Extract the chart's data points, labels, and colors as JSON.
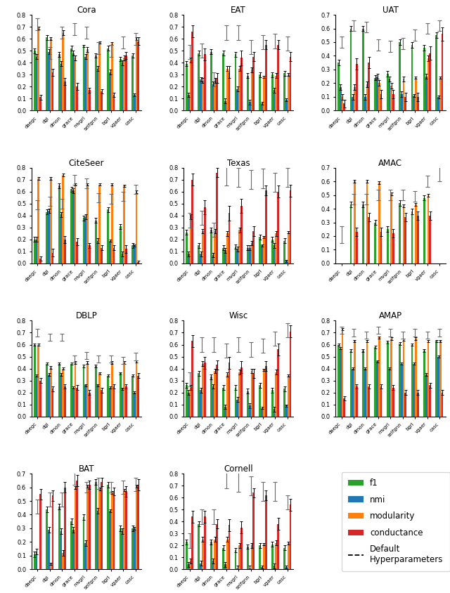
{
  "datasets": [
    "Cora",
    "EAT",
    "UAT",
    "CiteSeer",
    "Texas",
    "AMAC",
    "DBLP",
    "Wisc",
    "AMAP",
    "BAT",
    "Cornell"
  ],
  "methods": [
    "daegc",
    "dgi",
    "dmon",
    "grace",
    "mvgrl",
    "selfgnn",
    "bgrl",
    "vgaer",
    "casc"
  ],
  "measure_colors": [
    "#2ca02c",
    "#1f77b4",
    "#ff7f0e",
    "#d62728"
  ],
  "measure_names": [
    "f1",
    "nmi",
    "modularity",
    "conductance"
  ],
  "ylims": {
    "Cora": [
      0.0,
      0.8
    ],
    "EAT": [
      0.0,
      0.8
    ],
    "UAT": [
      0.0,
      0.7
    ],
    "CiteSeer": [
      0.0,
      0.8
    ],
    "Texas": [
      0.0,
      0.8
    ],
    "AMAC": [
      0.0,
      0.7
    ],
    "DBLP": [
      0.0,
      0.8
    ],
    "Wisc": [
      0.0,
      0.8
    ],
    "AMAP": [
      0.0,
      0.8
    ],
    "BAT": [
      0.0,
      0.7
    ],
    "Cornell": [
      0.0,
      0.8
    ]
  },
  "bar_data": {
    "Cora": {
      "f1": [
        0.5,
        0.61,
        0.47,
        0.52,
        0.54,
        0.46,
        0.52,
        0.43,
        0.46
      ],
      "nmi": [
        0.45,
        0.49,
        0.39,
        0.48,
        0.45,
        0.35,
        0.32,
        0.4,
        0.13
      ],
      "modularity": [
        0.69,
        0.6,
        0.65,
        0.44,
        0.51,
        0.57,
        0.56,
        0.44,
        0.6
      ],
      "conductance": [
        0.11,
        0.32,
        0.24,
        0.2,
        0.17,
        0.16,
        0.13,
        0.46,
        0.58
      ],
      "f1_err": [
        0.02,
        0.02,
        0.02,
        0.02,
        0.01,
        0.02,
        0.02,
        0.02,
        0.02
      ],
      "nmi_err": [
        0.02,
        0.02,
        0.02,
        0.02,
        0.02,
        0.02,
        0.02,
        0.02,
        0.01
      ],
      "modularity_err": [
        0.01,
        0.01,
        0.02,
        0.02,
        0.02,
        0.01,
        0.01,
        0.02,
        0.01
      ],
      "conductance_err": [
        0.02,
        0.03,
        0.03,
        0.03,
        0.02,
        0.02,
        0.02,
        0.03,
        0.03
      ],
      "default": [
        0.72,
        0.48,
        0.65,
        0.68,
        0.65,
        0.52,
        0.5,
        0.57,
        0.6
      ],
      "default_err": [
        0.05,
        0.05,
        0.05,
        0.05,
        0.05,
        0.05,
        0.05,
        0.05,
        0.05
      ]
    },
    "EAT": {
      "f1": [
        0.39,
        0.48,
        0.49,
        0.48,
        0.47,
        0.29,
        0.3,
        0.3,
        0.31
      ],
      "nmi": [
        0.13,
        0.26,
        0.22,
        0.08,
        0.18,
        0.07,
        0.06,
        0.17,
        0.09
      ],
      "modularity": [
        0.42,
        0.25,
        0.25,
        0.35,
        0.35,
        0.34,
        0.28,
        0.29,
        0.3
      ],
      "conductance": [
        0.66,
        0.47,
        0.27,
        0.32,
        0.44,
        0.45,
        0.55,
        0.55,
        0.45
      ],
      "f1_err": [
        0.02,
        0.02,
        0.02,
        0.02,
        0.02,
        0.02,
        0.02,
        0.02,
        0.02
      ],
      "nmi_err": [
        0.02,
        0.02,
        0.02,
        0.02,
        0.02,
        0.02,
        0.01,
        0.02,
        0.01
      ],
      "modularity_err": [
        0.02,
        0.02,
        0.02,
        0.02,
        0.02,
        0.02,
        0.01,
        0.02,
        0.01
      ],
      "conductance_err": [
        0.05,
        0.05,
        0.04,
        0.05,
        0.06,
        0.04,
        0.04,
        0.04,
        0.04
      ],
      "default": [
        0.49,
        0.5,
        0.26,
        0.65,
        0.65,
        0.53,
        0.57,
        0.58,
        0.56
      ],
      "default_err": [
        0.06,
        0.06,
        0.06,
        0.06,
        0.06,
        0.06,
        0.06,
        0.06,
        0.06
      ]
    },
    "UAT": {
      "f1": [
        0.35,
        0.6,
        0.6,
        0.24,
        0.27,
        0.5,
        0.48,
        0.46,
        0.55
      ],
      "nmi": [
        0.17,
        0.1,
        0.1,
        0.25,
        0.23,
        0.12,
        0.11,
        0.25,
        0.1
      ],
      "modularity": [
        0.1,
        0.17,
        0.19,
        0.2,
        0.18,
        0.23,
        0.24,
        0.38,
        0.24
      ],
      "conductance": [
        0.05,
        0.34,
        0.35,
        0.12,
        0.12,
        0.1,
        0.1,
        0.42,
        0.56
      ],
      "f1_err": [
        0.02,
        0.02,
        0.02,
        0.02,
        0.02,
        0.02,
        0.02,
        0.02,
        0.02
      ],
      "nmi_err": [
        0.02,
        0.02,
        0.02,
        0.02,
        0.02,
        0.02,
        0.01,
        0.02,
        0.01
      ],
      "modularity_err": [
        0.02,
        0.02,
        0.02,
        0.02,
        0.02,
        0.02,
        0.01,
        0.02,
        0.01
      ],
      "conductance_err": [
        0.03,
        0.04,
        0.04,
        0.03,
        0.03,
        0.03,
        0.03,
        0.05,
        0.05
      ],
      "default": [
        0.5,
        0.62,
        0.61,
        0.48,
        0.47,
        0.49,
        0.55,
        0.6,
        0.62
      ],
      "default_err": [
        0.04,
        0.04,
        0.04,
        0.04,
        0.04,
        0.04,
        0.04,
        0.04,
        0.04
      ]
    },
    "CiteSeer": {
      "f1": [
        0.2,
        0.43,
        0.65,
        0.62,
        0.38,
        0.36,
        0.45,
        0.31,
        0.15
      ],
      "nmi": [
        0.2,
        0.44,
        0.41,
        0.61,
        0.39,
        0.19,
        0.19,
        0.08,
        0.15
      ],
      "modularity": [
        0.71,
        0.71,
        0.74,
        0.66,
        0.66,
        0.66,
        0.66,
        0.65,
        0.6
      ],
      "conductance": [
        0.04,
        0.09,
        0.2,
        0.18,
        0.15,
        0.13,
        0.13,
        0.12,
        0.01
      ],
      "f1_err": [
        0.02,
        0.02,
        0.02,
        0.02,
        0.02,
        0.02,
        0.02,
        0.02,
        0.02
      ],
      "nmi_err": [
        0.02,
        0.02,
        0.02,
        0.02,
        0.02,
        0.02,
        0.01,
        0.02,
        0.01
      ],
      "modularity_err": [
        0.01,
        0.01,
        0.01,
        0.01,
        0.01,
        0.01,
        0.01,
        0.01,
        0.01
      ],
      "conductance_err": [
        0.02,
        0.03,
        0.03,
        0.03,
        0.02,
        0.02,
        0.02,
        0.03,
        0.01
      ],
      "default": [
        0.49,
        0.52,
        0.5,
        0.7,
        0.67,
        0.55,
        0.54,
        0.56,
        0.62
      ],
      "default_err": [
        0.04,
        0.04,
        0.04,
        0.04,
        0.04,
        0.04,
        0.04,
        0.04,
        0.04
      ]
    },
    "Texas": {
      "f1": [
        0.26,
        0.15,
        0.28,
        0.13,
        0.14,
        0.13,
        0.22,
        0.2,
        0.19
      ],
      "nmi": [
        0.08,
        0.08,
        0.07,
        0.11,
        0.12,
        0.13,
        0.15,
        0.15,
        0.02
      ],
      "modularity": [
        0.39,
        0.27,
        0.27,
        0.25,
        0.28,
        0.17,
        0.22,
        0.25,
        0.26
      ],
      "conductance": [
        0.7,
        0.47,
        0.76,
        0.42,
        0.48,
        0.27,
        0.61,
        0.6,
        0.61
      ],
      "f1_err": [
        0.02,
        0.02,
        0.02,
        0.02,
        0.02,
        0.02,
        0.02,
        0.02,
        0.02
      ],
      "nmi_err": [
        0.02,
        0.02,
        0.02,
        0.02,
        0.02,
        0.02,
        0.01,
        0.02,
        0.01
      ],
      "modularity_err": [
        0.02,
        0.02,
        0.02,
        0.02,
        0.02,
        0.02,
        0.01,
        0.02,
        0.01
      ],
      "conductance_err": [
        0.05,
        0.06,
        0.04,
        0.06,
        0.06,
        0.04,
        0.04,
        0.05,
        0.05
      ],
      "default": [
        0.36,
        0.38,
        0.28,
        0.73,
        0.72,
        0.7,
        0.71,
        0.68,
        0.72
      ],
      "default_err": [
        0.06,
        0.06,
        0.06,
        0.08,
        0.08,
        0.08,
        0.08,
        0.08,
        0.08
      ]
    },
    "AMAC": {
      "f1": [
        0.0,
        0.43,
        0.43,
        0.3,
        0.25,
        0.44,
        0.38,
        0.48,
        0.0
      ],
      "nmi": [
        0.0,
        0.0,
        0.0,
        0.0,
        0.0,
        0.0,
        0.0,
        0.0,
        0.0
      ],
      "modularity": [
        0.0,
        0.6,
        0.6,
        0.59,
        0.51,
        0.42,
        0.43,
        0.5,
        0.0
      ],
      "conductance": [
        0.0,
        0.23,
        0.34,
        0.23,
        0.22,
        0.34,
        0.35,
        0.35,
        0.0
      ],
      "f1_err": [
        0.0,
        0.02,
        0.02,
        0.02,
        0.02,
        0.02,
        0.02,
        0.02,
        0.0
      ],
      "nmi_err": [
        0.0,
        0.0,
        0.0,
        0.0,
        0.0,
        0.0,
        0.0,
        0.0,
        0.0
      ],
      "modularity_err": [
        0.0,
        0.01,
        0.01,
        0.01,
        0.01,
        0.01,
        0.01,
        0.01,
        0.0
      ],
      "conductance_err": [
        0.0,
        0.03,
        0.03,
        0.03,
        0.03,
        0.03,
        0.03,
        0.03,
        0.0
      ],
      "default": [
        0.21,
        0.47,
        0.47,
        0.5,
        0.5,
        0.5,
        0.49,
        0.6,
        0.7
      ],
      "default_err": [
        0.06,
        0.04,
        0.04,
        0.04,
        0.04,
        0.04,
        0.04,
        0.04,
        0.1
      ]
    },
    "DBLP": {
      "f1": [
        0.6,
        0.44,
        0.44,
        0.44,
        0.42,
        0.42,
        0.34,
        0.36,
        0.34
      ],
      "nmi": [
        0.34,
        0.35,
        0.35,
        0.24,
        0.26,
        0.26,
        0.24,
        0.23,
        0.2
      ],
      "modularity": [
        0.6,
        0.41,
        0.4,
        0.45,
        0.45,
        0.36,
        0.45,
        0.45,
        0.46
      ],
      "conductance": [
        0.3,
        0.23,
        0.25,
        0.24,
        0.2,
        0.22,
        0.25,
        0.25,
        0.34
      ],
      "f1_err": [
        0.01,
        0.01,
        0.01,
        0.01,
        0.01,
        0.01,
        0.01,
        0.01,
        0.01
      ],
      "nmi_err": [
        0.01,
        0.01,
        0.01,
        0.01,
        0.01,
        0.01,
        0.01,
        0.01,
        0.01
      ],
      "modularity_err": [
        0.01,
        0.01,
        0.01,
        0.01,
        0.01,
        0.01,
        0.01,
        0.01,
        0.01
      ],
      "conductance_err": [
        0.02,
        0.02,
        0.02,
        0.02,
        0.02,
        0.02,
        0.02,
        0.02,
        0.02
      ],
      "default": [
        0.7,
        0.66,
        0.66,
        0.48,
        0.51,
        0.48,
        0.48,
        0.47,
        0.5
      ],
      "default_err": [
        0.03,
        0.03,
        0.03,
        0.03,
        0.03,
        0.03,
        0.03,
        0.03,
        0.03
      ]
    },
    "Wisc": {
      "f1": [
        0.26,
        0.36,
        0.33,
        0.24,
        0.24,
        0.21,
        0.26,
        0.22,
        0.23
      ],
      "nmi": [
        0.2,
        0.22,
        0.25,
        0.08,
        0.14,
        0.09,
        0.07,
        0.06,
        0.09
      ],
      "modularity": [
        0.24,
        0.44,
        0.38,
        0.35,
        0.37,
        0.38,
        0.39,
        0.37,
        0.34
      ],
      "conductance": [
        0.63,
        0.45,
        0.43,
        0.45,
        0.41,
        0.36,
        0.42,
        0.56,
        0.71
      ],
      "f1_err": [
        0.02,
        0.02,
        0.02,
        0.02,
        0.02,
        0.02,
        0.02,
        0.02,
        0.02
      ],
      "nmi_err": [
        0.02,
        0.02,
        0.02,
        0.02,
        0.02,
        0.02,
        0.01,
        0.02,
        0.01
      ],
      "modularity_err": [
        0.02,
        0.02,
        0.02,
        0.02,
        0.02,
        0.02,
        0.01,
        0.02,
        0.01
      ],
      "conductance_err": [
        0.05,
        0.05,
        0.04,
        0.05,
        0.05,
        0.04,
        0.04,
        0.05,
        0.05
      ],
      "default": [
        0.31,
        0.6,
        0.6,
        0.55,
        0.6,
        0.56,
        0.59,
        0.65,
        0.72
      ],
      "default_err": [
        0.06,
        0.06,
        0.06,
        0.06,
        0.06,
        0.06,
        0.06,
        0.06,
        0.06
      ]
    },
    "AMAP": {
      "f1": [
        0.6,
        0.55,
        0.55,
        0.58,
        0.62,
        0.61,
        0.6,
        0.55,
        0.63
      ],
      "nmi": [
        0.57,
        0.4,
        0.4,
        0.46,
        0.4,
        0.44,
        0.44,
        0.35,
        0.5
      ],
      "modularity": [
        0.73,
        0.63,
        0.63,
        0.66,
        0.65,
        0.64,
        0.65,
        0.63,
        0.63
      ],
      "conductance": [
        0.15,
        0.25,
        0.25,
        0.25,
        0.24,
        0.2,
        0.2,
        0.26,
        0.2
      ],
      "f1_err": [
        0.01,
        0.01,
        0.01,
        0.01,
        0.01,
        0.01,
        0.01,
        0.01,
        0.01
      ],
      "nmi_err": [
        0.01,
        0.01,
        0.01,
        0.01,
        0.01,
        0.01,
        0.01,
        0.01,
        0.01
      ],
      "modularity_err": [
        0.01,
        0.01,
        0.01,
        0.01,
        0.01,
        0.01,
        0.01,
        0.01,
        0.01
      ],
      "conductance_err": [
        0.02,
        0.02,
        0.02,
        0.02,
        0.02,
        0.02,
        0.02,
        0.02,
        0.02
      ],
      "default": [
        0.72,
        0.7,
        0.68,
        0.72,
        0.7,
        0.68,
        0.7,
        0.68,
        0.7
      ],
      "default_err": [
        0.03,
        0.03,
        0.03,
        0.03,
        0.03,
        0.03,
        0.03,
        0.03,
        0.03
      ]
    },
    "BAT": {
      "f1": [
        0.11,
        0.44,
        0.46,
        0.35,
        0.38,
        0.64,
        0.62,
        0.3,
        0.3
      ],
      "nmi": [
        0.13,
        0.29,
        0.28,
        0.29,
        0.19,
        0.43,
        0.43,
        0.28,
        0.3
      ],
      "modularity": [
        0.0,
        0.04,
        0.12,
        0.6,
        0.61,
        0.59,
        0.56,
        0.58,
        0.61
      ],
      "conductance": [
        0.55,
        0.54,
        0.6,
        0.65,
        0.62,
        0.64,
        0.57,
        0.57,
        0.62
      ],
      "f1_err": [
        0.02,
        0.02,
        0.02,
        0.02,
        0.02,
        0.02,
        0.02,
        0.02,
        0.02
      ],
      "nmi_err": [
        0.02,
        0.02,
        0.02,
        0.02,
        0.02,
        0.02,
        0.01,
        0.02,
        0.01
      ],
      "modularity_err": [
        0.0,
        0.01,
        0.02,
        0.01,
        0.01,
        0.01,
        0.01,
        0.01,
        0.01
      ],
      "conductance_err": [
        0.04,
        0.04,
        0.04,
        0.04,
        0.03,
        0.03,
        0.03,
        0.04,
        0.04
      ],
      "default": [
        0.46,
        0.51,
        0.51,
        0.67,
        0.6,
        0.63,
        0.6,
        0.6,
        0.62
      ],
      "default_err": [
        0.05,
        0.05,
        0.05,
        0.05,
        0.04,
        0.04,
        0.04,
        0.05,
        0.05
      ]
    },
    "Cornell": {
      "f1": [
        0.23,
        0.38,
        0.23,
        0.18,
        0.16,
        0.19,
        0.2,
        0.21,
        0.18
      ],
      "nmi": [
        0.04,
        0.05,
        0.07,
        0.04,
        0.01,
        0.01,
        0.02,
        0.03,
        0.02
      ],
      "modularity": [
        0.07,
        0.25,
        0.25,
        0.25,
        0.2,
        0.2,
        0.21,
        0.22,
        0.22
      ],
      "conductance": [
        0.44,
        0.44,
        0.38,
        0.37,
        0.35,
        0.64,
        0.62,
        0.38,
        0.54
      ],
      "f1_err": [
        0.02,
        0.02,
        0.02,
        0.02,
        0.02,
        0.02,
        0.02,
        0.02,
        0.02
      ],
      "nmi_err": [
        0.02,
        0.02,
        0.02,
        0.02,
        0.02,
        0.02,
        0.01,
        0.02,
        0.01
      ],
      "modularity_err": [
        0.02,
        0.02,
        0.02,
        0.02,
        0.02,
        0.02,
        0.01,
        0.02,
        0.01
      ],
      "conductance_err": [
        0.05,
        0.05,
        0.04,
        0.05,
        0.05,
        0.04,
        0.04,
        0.05,
        0.05
      ],
      "default": [
        0.24,
        0.44,
        0.44,
        0.78,
        0.75,
        0.7,
        0.65,
        0.65,
        0.56
      ],
      "default_err": [
        0.06,
        0.06,
        0.06,
        0.1,
        0.1,
        0.08,
        0.08,
        0.08,
        0.06
      ]
    }
  }
}
